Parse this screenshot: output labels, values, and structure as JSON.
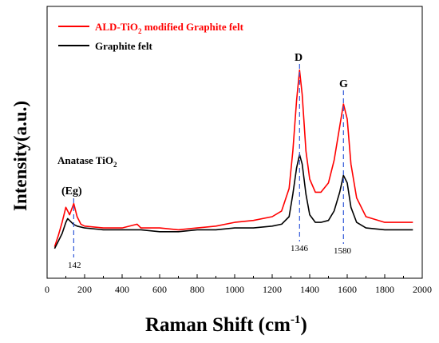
{
  "chart_data": {
    "type": "line",
    "title": "",
    "xlabel": "Raman Shift (cm",
    "xlabel_sup": "-1",
    "xlabel_end": ")",
    "ylabel": "Intensity(a.u.)",
    "xlim": [
      0,
      2000
    ],
    "x_ticks": [
      0,
      200,
      400,
      600,
      800,
      1000,
      1200,
      1400,
      1600,
      1800,
      2000
    ],
    "y_ticks_labeled": false,
    "grid": false,
    "legend_position": "top-left",
    "series": [
      {
        "name": "ALD-TiO",
        "name_sub": "2",
        "name_rest": " modified Graphite felt",
        "color": "#ff0000",
        "x": [
          40,
          60,
          80,
          100,
          120,
          142,
          160,
          180,
          200,
          300,
          400,
          480,
          500,
          600,
          700,
          800,
          900,
          1000,
          1100,
          1200,
          1250,
          1290,
          1310,
          1330,
          1346,
          1360,
          1380,
          1400,
          1430,
          1460,
          1500,
          1530,
          1560,
          1580,
          1600,
          1620,
          1650,
          1700,
          1800,
          1950
        ],
        "y": [
          0.04,
          0.1,
          0.17,
          0.25,
          0.21,
          0.27,
          0.2,
          0.16,
          0.15,
          0.14,
          0.14,
          0.16,
          0.14,
          0.14,
          0.13,
          0.14,
          0.15,
          0.17,
          0.18,
          0.2,
          0.23,
          0.35,
          0.55,
          0.82,
          0.98,
          0.85,
          0.55,
          0.4,
          0.33,
          0.33,
          0.38,
          0.5,
          0.68,
          0.8,
          0.72,
          0.48,
          0.3,
          0.2,
          0.17,
          0.17
        ]
      },
      {
        "name": "Graphite felt",
        "color": "#000000",
        "x": [
          40,
          60,
          80,
          100,
          110,
          140,
          160,
          200,
          300,
          400,
          500,
          600,
          700,
          800,
          900,
          1000,
          1100,
          1200,
          1250,
          1290,
          1310,
          1330,
          1346,
          1360,
          1380,
          1400,
          1430,
          1460,
          1500,
          1530,
          1560,
          1580,
          1600,
          1620,
          1650,
          1700,
          1800,
          1950
        ],
        "y": [
          0.03,
          0.07,
          0.11,
          0.17,
          0.19,
          0.16,
          0.15,
          0.14,
          0.13,
          0.13,
          0.13,
          0.12,
          0.12,
          0.13,
          0.13,
          0.14,
          0.14,
          0.15,
          0.16,
          0.2,
          0.32,
          0.46,
          0.53,
          0.48,
          0.32,
          0.21,
          0.17,
          0.17,
          0.18,
          0.23,
          0.33,
          0.42,
          0.38,
          0.25,
          0.17,
          0.14,
          0.13,
          0.13
        ]
      }
    ],
    "annotations": {
      "anatase_label": "Anatase TiO",
      "anatase_sub": "2",
      "eg_label": "(Eg)",
      "d_label": "D",
      "g_label": "G",
      "peak_142": "142",
      "peak_1346": "1346",
      "peak_1580": "1580"
    },
    "marker_color": "#2f57d8"
  }
}
